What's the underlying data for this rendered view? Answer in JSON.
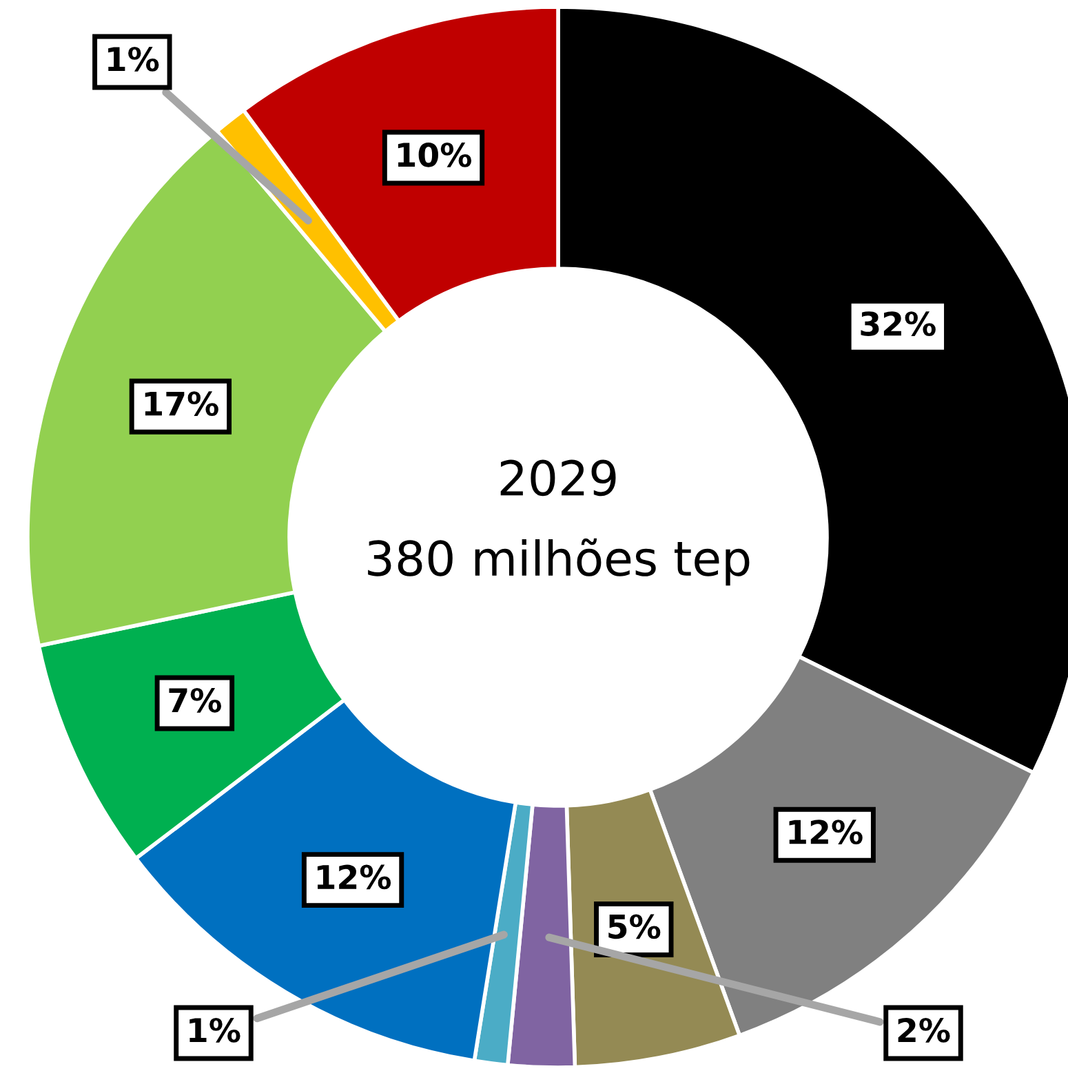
{
  "chart_data": {
    "type": "donut",
    "title": "2029",
    "subtitle": "380 milhões tep",
    "categories": [
      null,
      null,
      null,
      null,
      null,
      null,
      null,
      null,
      null,
      null
    ],
    "values": [
      32,
      12,
      5,
      2,
      1,
      12,
      7,
      17,
      1,
      10
    ],
    "value_labels": [
      "32%",
      "12%",
      "5%",
      "2%",
      "1%",
      "12%",
      "7%",
      "17%",
      "1%",
      "10%"
    ],
    "colors": [
      "#000000",
      "#808080",
      "#948a54",
      "#8064a2",
      "#4bacc6",
      "#0070c0",
      "#00b050",
      "#92d050",
      "#ffc000",
      "#c00000"
    ],
    "legend": false
  }
}
